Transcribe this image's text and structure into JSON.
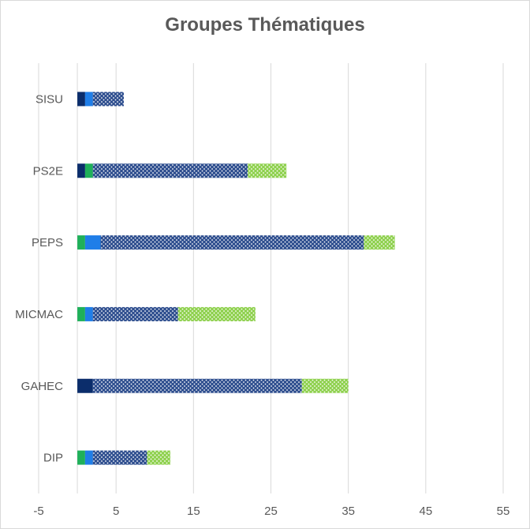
{
  "chart_data": {
    "type": "bar",
    "orientation": "horizontal",
    "stacked": true,
    "title": "Groupes Thématiques",
    "xlabel": "",
    "ylabel": "",
    "xlim": [
      -5,
      60
    ],
    "x_ticks": [
      "-5",
      "5",
      "15",
      "25",
      "35",
      "45",
      "55"
    ],
    "x_tick_values": [
      -5,
      5,
      15,
      25,
      35,
      45,
      55
    ],
    "grid": true,
    "legend": "none",
    "categories": [
      "DIP",
      "GAHEC",
      "MICMAC",
      "PEPS",
      "PS2E",
      "SISU"
    ],
    "series": [
      {
        "values": [
          0,
          2,
          0,
          0,
          1,
          1
        ],
        "color": "#0b2d6b",
        "pattern": "solid"
      },
      {
        "values": [
          1,
          0,
          1,
          1,
          1,
          0
        ],
        "color": "#1fb05a",
        "pattern": "solid"
      },
      {
        "values": [
          1,
          0,
          1,
          2,
          0,
          1
        ],
        "color": "#1f7ee8",
        "pattern": "solid"
      },
      {
        "values": [
          7,
          27,
          11,
          34,
          20,
          4
        ],
        "color": "#2f4f8f",
        "pattern": "dots"
      },
      {
        "values": [
          3,
          6,
          10,
          4,
          5,
          0
        ],
        "color": "#8fd14f",
        "pattern": "dots"
      }
    ]
  }
}
